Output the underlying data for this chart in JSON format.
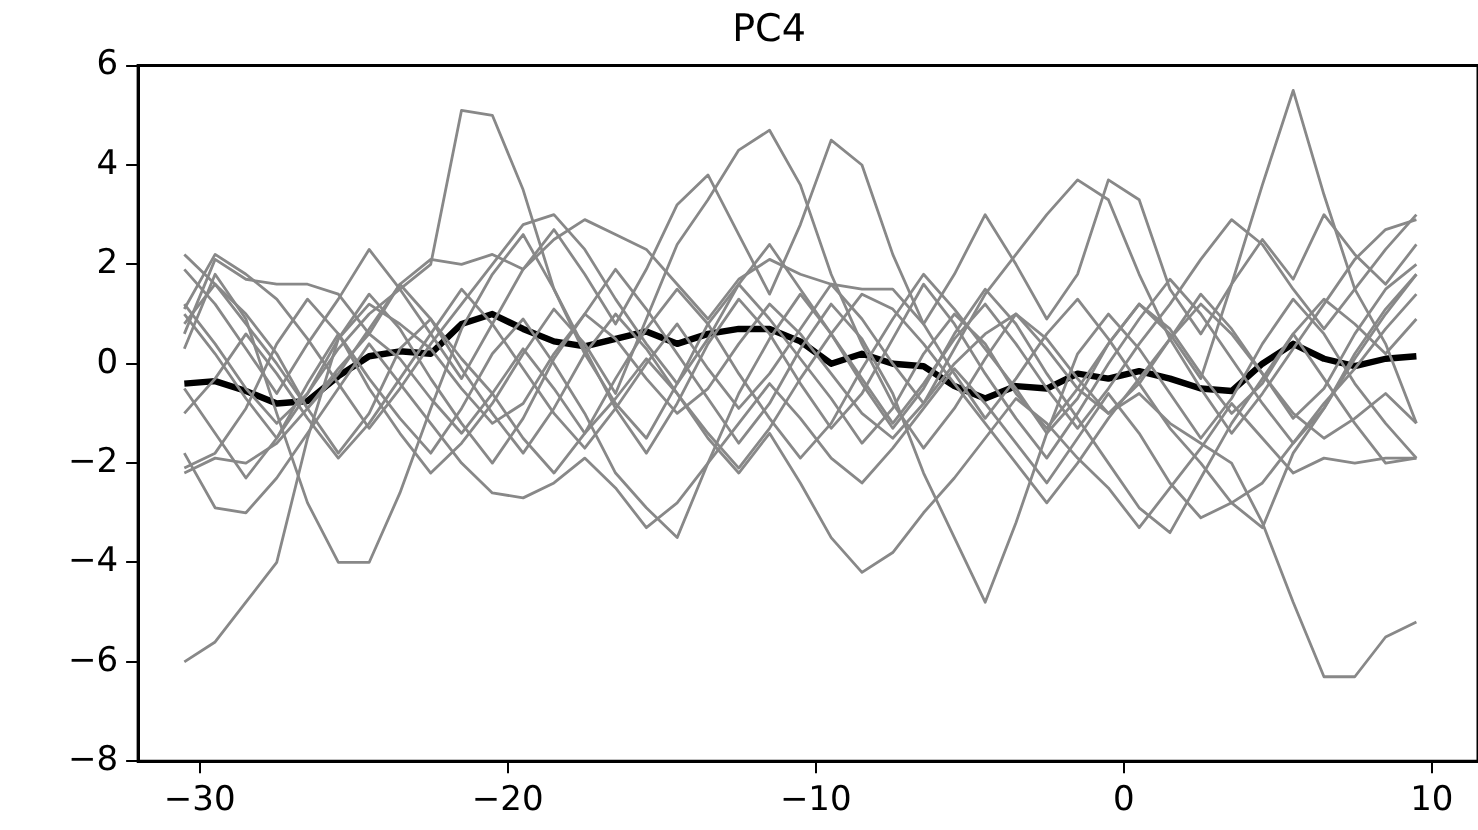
{
  "chart_data": {
    "type": "line",
    "title": "PC4",
    "x": [
      -30.5,
      -29.5,
      -28.5,
      -27.5,
      -26.5,
      -25.5,
      -24.5,
      -23.5,
      -22.5,
      -21.5,
      -20.5,
      -19.5,
      -18.5,
      -17.5,
      -16.5,
      -15.5,
      -14.5,
      -13.5,
      -12.5,
      -11.5,
      -10.5,
      -9.5,
      -8.5,
      -7.5,
      -6.5,
      -5.5,
      -4.5,
      -3.5,
      -2.5,
      -1.5,
      -0.5,
      0.5,
      1.5,
      2.5,
      3.5,
      4.5,
      5.5,
      6.5,
      7.5,
      8.5,
      9.5
    ],
    "xlim": [
      -32,
      11.5
    ],
    "xticks": [
      -30,
      -20,
      -10,
      0,
      10
    ],
    "ylim": [
      -8,
      6
    ],
    "yticks": [
      -8,
      -6,
      -4,
      -2,
      0,
      2,
      4,
      6
    ],
    "grid": false,
    "legend": false,
    "marker": "none",
    "line_style": "solid",
    "series": [
      {
        "color": "#888888",
        "values": [
          -6,
          -5.6,
          -4.8,
          -4,
          -1.5,
          0.5,
          1.2,
          0.8,
          0.3,
          -0.5,
          -1.2,
          -0.8,
          0.2,
          1,
          0.5,
          -0.3,
          -1,
          -0.5,
          0.4,
          1.2,
          0.6,
          -0.2,
          -1,
          -1.5,
          -0.8,
          0,
          0.6,
          1,
          0.3,
          -0.5,
          -1,
          -0.6,
          -1.2,
          -1.6,
          -2,
          -3.2,
          -4.8,
          -6.3,
          -6.3,
          -5.5,
          -5.2
        ]
      },
      {
        "color": "#888888",
        "values": [
          1.2,
          0.4,
          -0.5,
          -1.2,
          -0.6,
          0.3,
          1.0,
          1.5,
          2.0,
          5.1,
          5.0,
          3.5,
          1.5,
          0.2,
          -0.8,
          -1.5,
          -0.4,
          0.8,
          1.6,
          0.9,
          0.1,
          -0.7,
          -1.6,
          -0.9,
          0.2,
          1.0,
          0.4,
          -0.6,
          -1.3,
          -0.5,
          0.4,
          1.2,
          0.7,
          -0.2,
          -1.0,
          -0.4,
          0.6,
          1.3,
          0.8,
          0.2,
          0.9
        ]
      },
      {
        "color": "#888888",
        "values": [
          0.8,
          1.6,
          1.0,
          0.2,
          -0.9,
          -1.8,
          -1.0,
          0.3,
          0.9,
          0.1,
          -0.6,
          -1.5,
          -2.2,
          -1.4,
          -0.3,
          0.7,
          1.5,
          0.8,
          -0.2,
          -1.1,
          -1.9,
          -1.2,
          -0.1,
          0.9,
          1.8,
          1.1,
          0.3,
          -0.5,
          -1.4,
          -0.7,
          0.4,
          1.2,
          0.6,
          -0.3,
          1.6,
          3.6,
          5.5,
          3.4,
          1.5,
          0.4,
          -1.2
        ]
      },
      {
        "color": "#888888",
        "values": [
          -2.1,
          -1.8,
          -0.9,
          0.4,
          1.3,
          0.6,
          -0.5,
          -1.4,
          -2.2,
          -1.6,
          -0.8,
          0.2,
          1.1,
          0.4,
          -0.6,
          0.9,
          2.4,
          3.3,
          4.3,
          4.7,
          3.6,
          1.8,
          0.4,
          -0.8,
          -1.7,
          -0.9,
          0.1,
          1.0,
          0.5,
          -0.3,
          -1.0,
          -0.4,
          0.5,
          1.4,
          0.7,
          -0.2,
          -1.1,
          -0.5,
          0.6,
          1.5,
          2.0
        ]
      },
      {
        "color": "#888888",
        "values": [
          0.3,
          1.8,
          0.9,
          -1.0,
          -2.8,
          -4.0,
          -4.0,
          -2.6,
          -0.9,
          0.7,
          1.8,
          2.6,
          1.5,
          0.3,
          -0.9,
          -1.8,
          -0.8,
          0.4,
          1.3,
          0.6,
          -0.4,
          -1.3,
          -0.6,
          0.5,
          1.6,
          0.8,
          -0.2,
          -1.1,
          -1.9,
          -1.0,
          0.0,
          0.9,
          1.7,
          1.0,
          0.1,
          -0.8,
          -1.6,
          -0.9,
          0.2,
          1.1,
          1.8
        ]
      },
      {
        "color": "#888888",
        "values": [
          1.0,
          0.2,
          -0.7,
          -1.5,
          -0.6,
          0.5,
          1.4,
          0.7,
          -0.3,
          -1.2,
          -2.0,
          -1.1,
          0.1,
          1.0,
          1.9,
          1.1,
          0.2,
          -0.7,
          -1.6,
          -0.8,
          0.3,
          1.2,
          0.5,
          -0.6,
          -2.2,
          -3.5,
          -4.8,
          -3.2,
          -1.4,
          0.2,
          1.0,
          0.3,
          -0.6,
          -1.5,
          -0.7,
          0.4,
          1.3,
          0.6,
          -0.4,
          -1.2,
          -1.9
        ]
      },
      {
        "color": "#888888",
        "values": [
          -0.5,
          -1.4,
          -2.3,
          -1.5,
          -0.4,
          0.6,
          -0.3,
          -1.1,
          -1.8,
          -0.9,
          0.2,
          0.9,
          0.0,
          -1.0,
          -2.2,
          -2.9,
          -3.5,
          -2.0,
          -0.6,
          0.5,
          1.4,
          0.6,
          -0.4,
          -1.3,
          -0.5,
          0.6,
          1.5,
          0.8,
          -0.2,
          -1.1,
          -2.0,
          -2.9,
          -3.4,
          -2.3,
          -1.2,
          -0.3,
          0.6,
          -0.3,
          -1.2,
          -2.0,
          -1.9
        ]
      },
      {
        "color": "#888888",
        "values": [
          2.2,
          1.6,
          0.8,
          0.0,
          -0.9,
          -0.2,
          0.7,
          1.6,
          0.9,
          -0.1,
          -1.0,
          -1.8,
          -0.9,
          0.2,
          1.0,
          0.3,
          -0.6,
          -1.5,
          -2.2,
          -1.4,
          -2.4,
          -3.5,
          -4.2,
          -3.8,
          -3.0,
          -2.3,
          -1.5,
          -0.7,
          -1.2,
          -1.9,
          -2.5,
          -3.3,
          -2.5,
          -1.7,
          -0.8,
          -1.5,
          -2.2,
          -1.9,
          -2.0,
          -1.9,
          -1.9
        ]
      },
      {
        "color": "#888888",
        "values": [
          1.9,
          1.2,
          0.3,
          -0.6,
          0.4,
          1.3,
          2.3,
          1.5,
          0.6,
          -0.3,
          0.8,
          1.9,
          2.7,
          1.8,
          0.8,
          1.9,
          3.2,
          3.8,
          2.6,
          1.4,
          2.8,
          4.5,
          4.0,
          2.2,
          0.8,
          1.8,
          3.0,
          2.0,
          0.9,
          1.8,
          3.7,
          3.3,
          1.5,
          0.6,
          1.6,
          2.5,
          1.7,
          3.0,
          2.2,
          1.6,
          2.4
        ]
      },
      {
        "color": "#888888",
        "values": [
          -1.0,
          -0.3,
          0.6,
          -0.2,
          -1.1,
          -1.9,
          -1.2,
          -0.3,
          0.6,
          1.5,
          0.8,
          -0.1,
          -1.0,
          -1.7,
          -0.9,
          0.0,
          0.8,
          -0.1,
          -0.9,
          -0.2,
          0.7,
          1.6,
          0.9,
          0.0,
          -0.8,
          0.3,
          1.4,
          2.2,
          3.0,
          3.7,
          3.3,
          1.8,
          0.5,
          -0.5,
          -1.4,
          -0.6,
          0.3,
          1.2,
          2.1,
          2.7,
          2.9
        ]
      },
      {
        "color": "#888888",
        "values": [
          0.6,
          2.1,
          1.7,
          1.6,
          1.6,
          1.4,
          0.6,
          1.6,
          2.1,
          2.0,
          2.2,
          1.9,
          2.5,
          2.9,
          2.6,
          2.3,
          1.6,
          0.9,
          1.7,
          2.1,
          1.8,
          1.6,
          1.5,
          1.5,
          0.8,
          -0.2,
          -1.1,
          -0.3,
          0.6,
          1.3,
          0.5,
          -0.4,
          -1.3,
          -2.0,
          -2.8,
          -3.3,
          -1.8,
          -0.9,
          0.1,
          1.0,
          1.8
        ]
      },
      {
        "color": "#888888",
        "values": [
          -1.8,
          -2.9,
          -3.0,
          -2.3,
          -1.4,
          -0.5,
          0.4,
          -0.4,
          -1.2,
          -2.0,
          -2.6,
          -2.7,
          -2.4,
          -1.9,
          -2.5,
          -3.3,
          -2.8,
          -2.0,
          -1.2,
          -0.4,
          -1.1,
          -1.9,
          -2.4,
          -1.7,
          -0.9,
          -0.1,
          -0.8,
          -1.6,
          -2.4,
          -1.5,
          -0.6,
          -1.4,
          -2.4,
          -3.1,
          -2.8,
          -2.4,
          -1.6,
          -0.8,
          -0.1,
          0.7,
          1.4
        ]
      },
      {
        "color": "#888888",
        "values": [
          -2.2,
          -1.9,
          -2.0,
          -1.6,
          -0.9,
          -0.1,
          0.6,
          0.1,
          -0.7,
          -1.4,
          -0.6,
          0.3,
          -0.5,
          -1.4,
          -0.7,
          0.1,
          -0.6,
          -1.4,
          -2.1,
          -1.3,
          -0.3,
          0.6,
          1.4,
          1.1,
          0.4,
          -0.4,
          -1.2,
          -2.0,
          -2.8,
          -2.0,
          -1.1,
          -0.3,
          0.5,
          1.2,
          0.6,
          -0.2,
          -1.0,
          -1.5,
          -1.1,
          -0.6,
          -1.2
        ]
      },
      {
        "color": "#888888",
        "values": [
          1.1,
          2.2,
          1.8,
          1.3,
          0.5,
          -0.4,
          -1.3,
          -0.5,
          0.4,
          1.2,
          2.0,
          2.8,
          3.0,
          2.3,
          1.3,
          0.4,
          -0.4,
          0.5,
          1.6,
          2.4,
          1.5,
          0.6,
          -0.3,
          -1.2,
          -0.4,
          0.5,
          1.2,
          0.4,
          -0.5,
          -1.3,
          -0.5,
          0.4,
          1.2,
          2.1,
          2.9,
          2.4,
          1.5,
          0.7,
          1.5,
          2.3,
          3.0
        ]
      },
      {
        "color": "#000000",
        "values": [
          -0.4,
          -0.35,
          -0.55,
          -0.8,
          -0.75,
          -0.25,
          0.15,
          0.25,
          0.2,
          0.8,
          1.0,
          0.7,
          0.45,
          0.35,
          0.5,
          0.65,
          0.4,
          0.6,
          0.7,
          0.7,
          0.45,
          0.0,
          0.2,
          0.0,
          -0.05,
          -0.45,
          -0.7,
          -0.45,
          -0.5,
          -0.2,
          -0.3,
          -0.15,
          -0.3,
          -0.5,
          -0.55,
          0.0,
          0.4,
          0.1,
          -0.05,
          0.1,
          0.15
        ]
      }
    ]
  }
}
